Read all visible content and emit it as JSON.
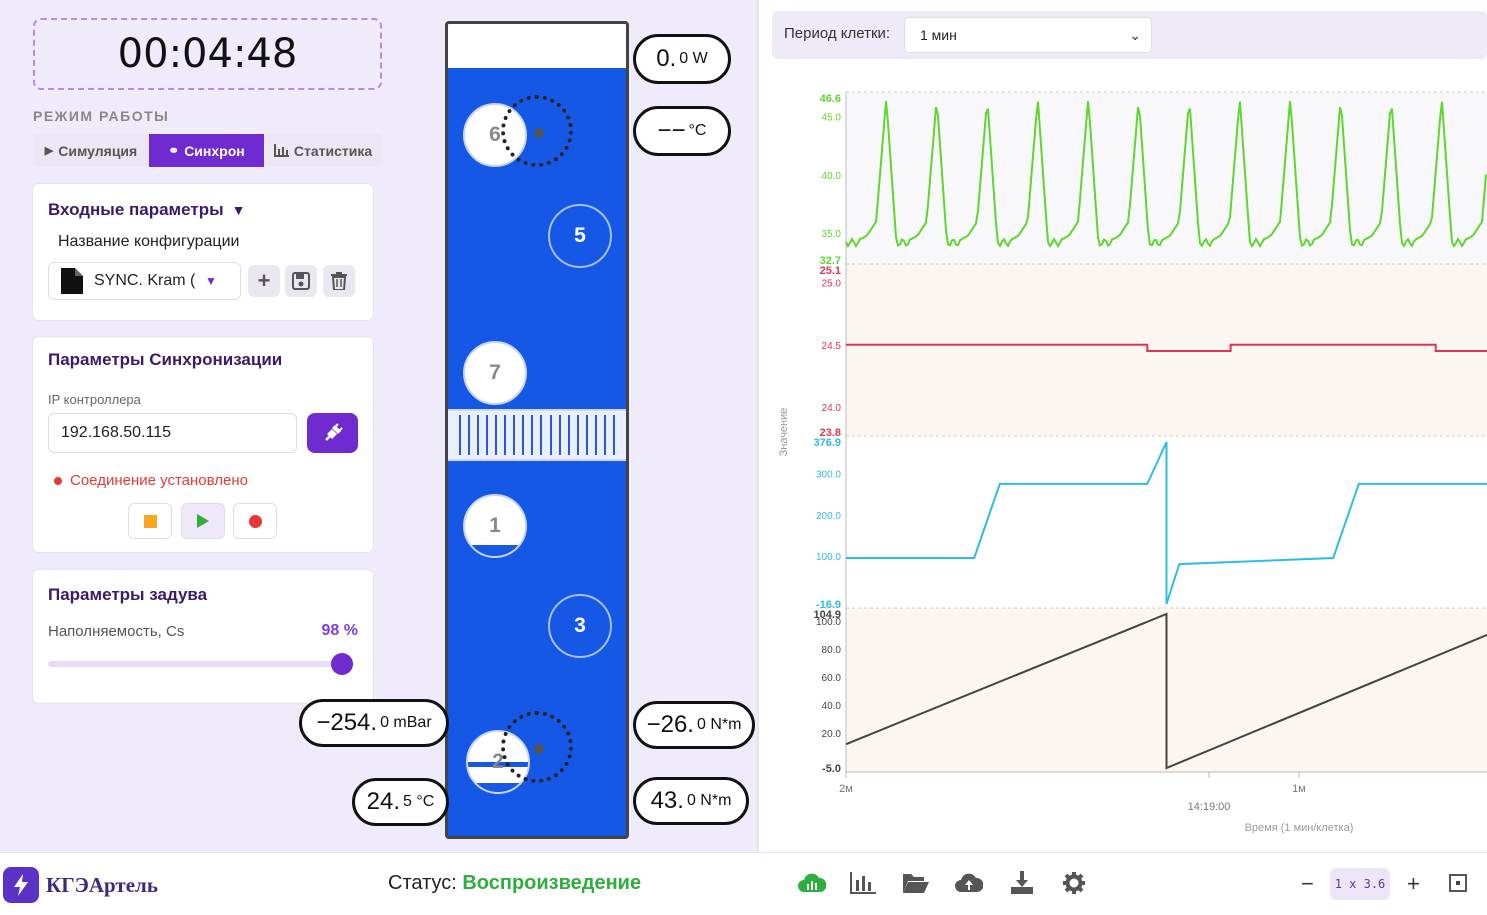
{
  "timer": "00:04:48",
  "mode": {
    "label": "РЕЖИМ РАБОТЫ",
    "tabs": [
      "Симуляция",
      "Синхрон",
      "Статистика"
    ],
    "active": "Синхрон"
  },
  "input_params": {
    "title": "Входные параметры",
    "config_label": "Название конфигурации",
    "config_value": "SYNC. Kram ("
  },
  "sync_params": {
    "title": "Параметры Синхронизации",
    "ip_label": "IP контроллера",
    "ip_value": "192.168.50.115",
    "connection_status": "Соединение установлено"
  },
  "blow_params": {
    "title": "Параметры задува",
    "fill_label": "Наполняемость, Cs",
    "fill_value": "98 %",
    "fill_fraction": 0.98
  },
  "diagram": {
    "positions": [
      "6",
      "5",
      "7",
      "1",
      "3",
      "2"
    ],
    "readouts": {
      "power": {
        "big": "0.",
        "small": "0 W"
      },
      "temp_top": {
        "big": "−−",
        "small": "°C"
      },
      "pressure": {
        "big": "−254.",
        "small": "0 mBar"
      },
      "temp_bottom": {
        "big": "24.",
        "small": "5 °C"
      },
      "torque1": {
        "big": "−26.",
        "small": "0 N*m"
      },
      "torque2": {
        "big": "43.",
        "small": "0 N*m"
      }
    }
  },
  "chart_header": {
    "period_label": "Период клетки:",
    "period_value": "1 мин"
  },
  "chart_data": {
    "type": "line",
    "ylabel": "Значение",
    "xlabel": "Время (1 мин/клетка)",
    "x_ticks": [
      "2м",
      "14:19:00",
      "1м"
    ],
    "panels": [
      {
        "color": "#5fd62e",
        "ticks": [
          "46.6",
          "45.0",
          "40.0",
          "35.0",
          "32.7"
        ],
        "min": 32.7,
        "max": 46.6,
        "pattern": "periodic spikes, ~13 cycles"
      },
      {
        "color": "#e03454",
        "ticks": [
          "25.1",
          "25.0",
          "24.5",
          "24.0",
          "23.8"
        ],
        "min": 23.8,
        "max": 25.1,
        "segments": [
          [
            0.0,
            24.5
          ],
          [
            0.47,
            24.5
          ],
          [
            0.47,
            24.45
          ],
          [
            0.6,
            24.45
          ],
          [
            0.6,
            24.5
          ],
          [
            0.92,
            24.5
          ],
          [
            0.92,
            24.45
          ],
          [
            1.0,
            24.45
          ]
        ]
      },
      {
        "color": "#2ebce6",
        "ticks": [
          "376.9",
          "300.0",
          "200.0",
          "100.0",
          "-16.9"
        ],
        "min": -16.9,
        "max": 376.9,
        "segments": [
          [
            0.0,
            95
          ],
          [
            0.2,
            95
          ],
          [
            0.24,
            275
          ],
          [
            0.47,
            275
          ],
          [
            0.5,
            376.9
          ],
          [
            0.5,
            -16.9
          ],
          [
            0.52,
            80
          ],
          [
            0.76,
            95
          ],
          [
            0.8,
            275
          ],
          [
            1.0,
            275
          ]
        ]
      },
      {
        "color": "#444444",
        "ticks": [
          "104.9",
          "100.0",
          "80.0",
          "60.0",
          "40.0",
          "20.0",
          "-5.0"
        ],
        "min": -5.0,
        "max": 104.9,
        "segments": [
          [
            0.0,
            12
          ],
          [
            0.5,
            104.9
          ],
          [
            0.5,
            -5.0
          ],
          [
            1.0,
            90
          ]
        ]
      }
    ]
  },
  "footer": {
    "brand": "КГЭАртель",
    "status_label": "Статус:",
    "status_value": "Воспроизведение",
    "zoom": "1 x 3.6",
    "zoom_out": "−",
    "zoom_in": "+"
  },
  "colors": {
    "accent": "#6f2ad0",
    "status_ok": "#2eae3f",
    "error": "#e53935",
    "diagram_blue": "#1658e6"
  }
}
